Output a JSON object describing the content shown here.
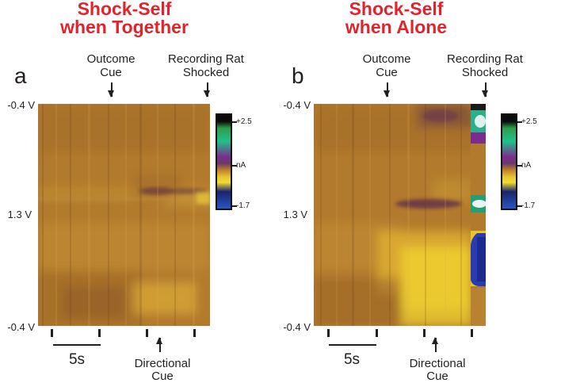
{
  "panels": [
    {
      "letter": "a",
      "title_line1": "Shock-Self",
      "title_line2": "when Together",
      "outcome_cue": [
        "Outcome",
        "Cue"
      ],
      "shock_label": [
        "Recording Rat",
        "Shocked"
      ],
      "directional_cue": [
        "Directional",
        "Cue"
      ],
      "scale_bar_label": "5s",
      "voltage_labels": [
        "-0.4 V",
        "1.3 V",
        "-0.4 V"
      ],
      "colorbar_labels": [
        "+2.5",
        "nA",
        "-1.7"
      ]
    },
    {
      "letter": "b",
      "title_line1": "Shock-Self",
      "title_line2": "when Alone",
      "outcome_cue": [
        "Outcome",
        "Cue"
      ],
      "shock_label": [
        "Recording Rat",
        "Shocked"
      ],
      "directional_cue": [
        "Directional",
        "Cue"
      ],
      "scale_bar_label": "5s",
      "voltage_labels": [
        "-0.4 V",
        "1.3 V",
        "-0.4 V"
      ],
      "colorbar_labels": [
        "+2.5",
        "nA",
        "-1.7"
      ]
    }
  ],
  "colorbar": {
    "stops": [
      "#0a0a0a",
      "#2fa84f",
      "#1ec98a",
      "#7a2e8a",
      "#b8782a",
      "#d9b030",
      "#f2e030",
      "#1a2a7a",
      "#2a58c8"
    ],
    "max": "+2.5",
    "zero": "nA",
    "min": "-1.7"
  }
}
